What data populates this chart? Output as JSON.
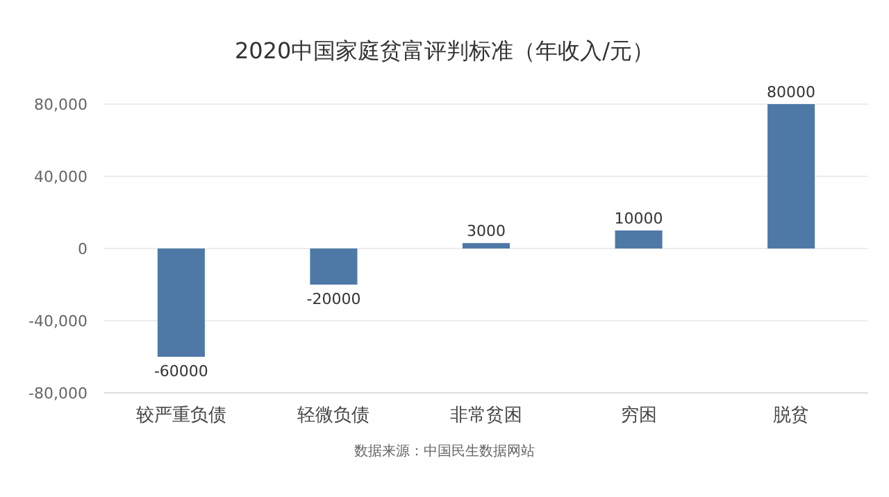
{
  "chart_data": {
    "type": "bar",
    "title": "2020中国家庭贫富评判标准（年收入/元）",
    "categories": [
      "较严重负债",
      "轻微负债",
      "非常贫困",
      "穷困",
      "脱贫"
    ],
    "values": [
      -60000,
      -20000,
      3000,
      10000,
      80000
    ],
    "color": "#4e79a7",
    "ylim": [
      -80000,
      80000
    ],
    "yticks": [
      {
        "value": -80000,
        "label": "-80,000"
      },
      {
        "value": -40000,
        "label": "-40,000"
      },
      0,
      {
        "value": 40000,
        "label": "40,000"
      },
      {
        "value": 80000,
        "label": "80,000"
      }
    ],
    "grid": "y",
    "data_labels": true,
    "annotations": [
      "数据来源：中国民生数据网站"
    ]
  }
}
